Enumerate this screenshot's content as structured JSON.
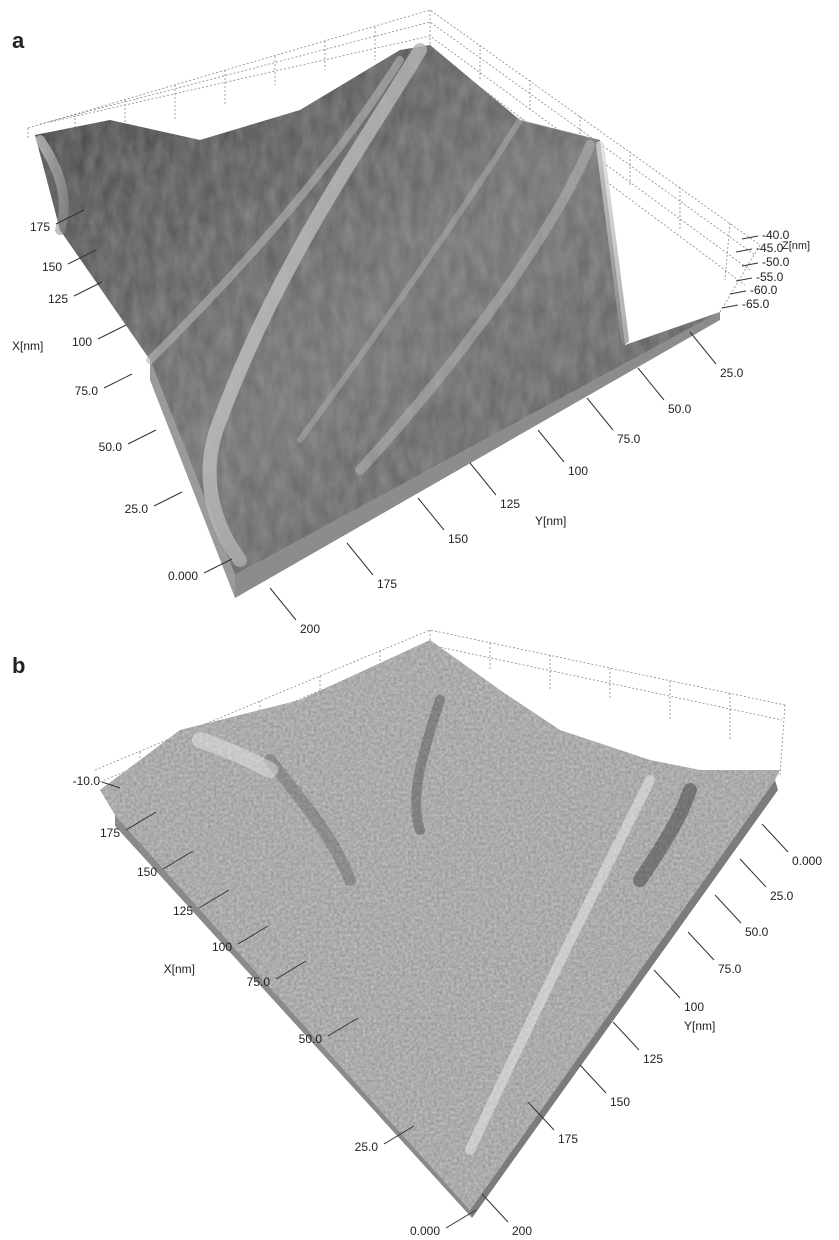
{
  "panels": [
    {
      "label": "a",
      "x_axis": {
        "title": "X[nm]",
        "ticks": [
          "0.000",
          "25.0",
          "50.0",
          "75.0",
          "100",
          "125",
          "150",
          "175"
        ]
      },
      "y_axis": {
        "title": "Y[nm]",
        "ticks": [
          "25.0",
          "50.0",
          "75.0",
          "100",
          "125",
          "150",
          "175",
          "200"
        ]
      },
      "z_axis": {
        "title": "Z[nm]",
        "ticks": [
          "-40.0",
          "-45.0",
          "-50.0",
          "-55.0",
          "-60.0",
          "-65.0"
        ]
      }
    },
    {
      "label": "b",
      "x_axis": {
        "title": "X[nm]",
        "ticks": [
          "0.000",
          "25.0",
          "50.0",
          "75.0",
          "100",
          "125",
          "150",
          "175"
        ]
      },
      "y_axis": {
        "title": "Y[nm]",
        "ticks": [
          "0.000",
          "25.0",
          "50.0",
          "75.0",
          "100",
          "125",
          "150",
          "175",
          "200"
        ]
      },
      "z_axis": {
        "ticks": [
          "-10.0"
        ]
      }
    }
  ]
}
